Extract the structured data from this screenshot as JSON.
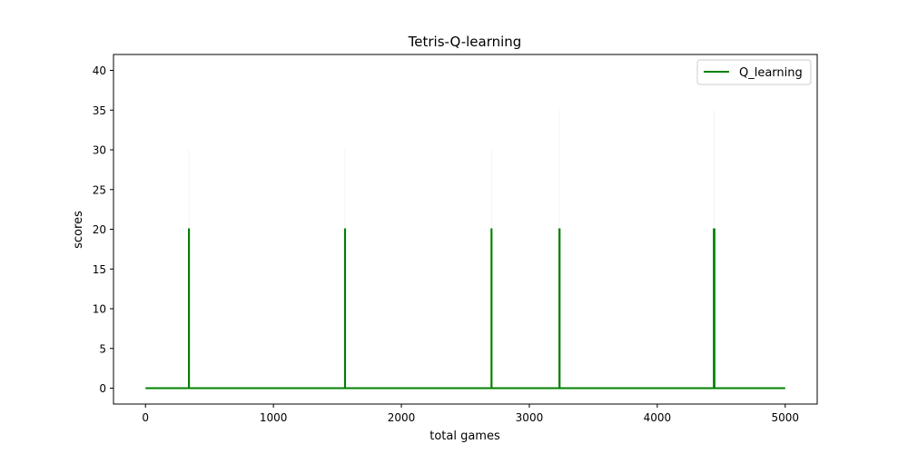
{
  "chart_data": {
    "type": "line",
    "title": "Tetris-Q-learning",
    "xlabel": "total games",
    "ylabel": "scores",
    "xlim": [
      -250,
      5250
    ],
    "ylim": [
      -2,
      42
    ],
    "xticks": [
      0,
      1000,
      2000,
      3000,
      4000,
      5000
    ],
    "yticks": [
      0,
      5,
      10,
      15,
      20,
      25,
      30,
      35,
      40
    ],
    "grid": false,
    "legend_position": "top-right",
    "series": [
      {
        "name": "Q_learning",
        "color": "#008000",
        "points": [
          [
            0,
            0
          ],
          [
            339,
            0
          ],
          [
            339,
            20
          ],
          [
            340,
            20
          ],
          [
            340,
            0
          ],
          [
            1559,
            0
          ],
          [
            1559,
            20
          ],
          [
            1560,
            20
          ],
          [
            1560,
            0
          ],
          [
            2704,
            0
          ],
          [
            2704,
            20
          ],
          [
            2705,
            20
          ],
          [
            2705,
            0
          ],
          [
            3235,
            0
          ],
          [
            3235,
            20
          ],
          [
            3237,
            20
          ],
          [
            3237,
            0
          ],
          [
            4442,
            0
          ],
          [
            4442,
            20
          ],
          [
            4447,
            20
          ],
          [
            4447,
            0
          ],
          [
            5000,
            0
          ]
        ]
      }
    ],
    "faint_series": {
      "color": "#d8d8d8",
      "spikes": [
        [
          339,
          30
        ],
        [
          1559,
          30
        ],
        [
          2704,
          30
        ],
        [
          3235,
          35
        ],
        [
          4443,
          35
        ]
      ]
    }
  }
}
